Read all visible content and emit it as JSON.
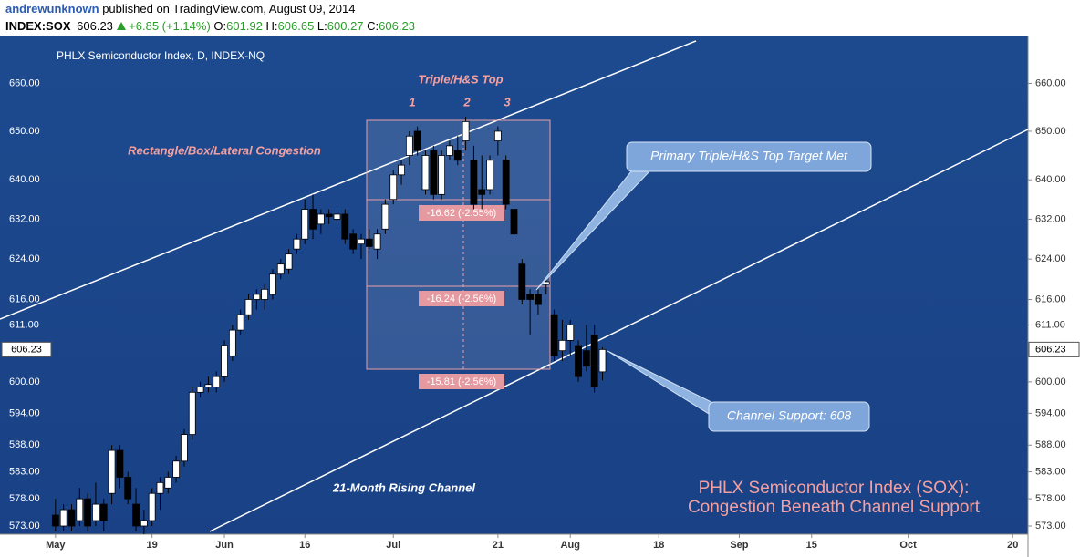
{
  "header": {
    "user": "andrewunknown",
    "published": "published on TradingView.com, August 09, 2014",
    "symbol": "INDEX:SOX",
    "change": "+6.85 (+1.14%)",
    "o_label": "O:",
    "h_label": "H:",
    "l_label": "L:",
    "c_label": "C:"
  },
  "chart_data": {
    "type": "candlestick",
    "title": "PHLX Semiconductor Index, D, INDEX-NQ",
    "log_scale": true,
    "ylim": [
      571.5,
      669
    ],
    "xlim": [
      -6.9,
      120.9
    ],
    "yticks": [
      {
        "value": 573,
        "label": "573.00"
      },
      {
        "value": 578,
        "label": "578.00"
      },
      {
        "value": 583,
        "label": "583.00"
      },
      {
        "value": 588,
        "label": "588.00"
      },
      {
        "value": 594,
        "label": "594.00"
      },
      {
        "value": 600,
        "label": "600.00"
      },
      {
        "value": 611,
        "label": "611.00"
      },
      {
        "value": 616,
        "label": "616.00"
      },
      {
        "value": 624,
        "label": "624.00"
      },
      {
        "value": 632,
        "label": "632.00"
      },
      {
        "value": 640,
        "label": "640.00"
      },
      {
        "value": 650,
        "label": "650.00"
      },
      {
        "value": 660,
        "label": "660.00"
      }
    ],
    "xticks": [
      {
        "value": 0,
        "label": "May"
      },
      {
        "value": 12,
        "label": "19"
      },
      {
        "value": 21,
        "label": "Jun"
      },
      {
        "value": 31,
        "label": "16"
      },
      {
        "value": 42,
        "label": "Jul"
      },
      {
        "value": 55,
        "label": "21"
      },
      {
        "value": 64,
        "label": "Aug"
      },
      {
        "value": 75,
        "label": "18"
      },
      {
        "value": 85,
        "label": "Sep"
      },
      {
        "value": 94,
        "label": "15"
      },
      {
        "value": 106,
        "label": "Oct"
      },
      {
        "value": 119,
        "label": "20"
      }
    ],
    "up_color": "#ffffff",
    "down_color": "#000000",
    "open": [
      575,
      573,
      576,
      574,
      578,
      574,
      577,
      579,
      587,
      582,
      577,
      573,
      574,
      579,
      580,
      582,
      585,
      590,
      598,
      599,
      599,
      601,
      605,
      610,
      613,
      616,
      616,
      617,
      621,
      622,
      626,
      628,
      634,
      631,
      633,
      632,
      633,
      629,
      627,
      628,
      626,
      630,
      636,
      641,
      645,
      650,
      638,
      646,
      637,
      645,
      646,
      648,
      644,
      638,
      638,
      648,
      644,
      634,
      623,
      617,
      617,
      619,
      613,
      606,
      608,
      607,
      606,
      609,
      601.92
    ],
    "high": [
      578,
      577,
      577,
      580,
      579,
      581,
      578,
      588,
      588,
      583,
      580,
      576,
      580,
      582,
      583,
      586,
      591,
      599,
      600,
      601,
      602,
      608,
      611,
      614,
      617,
      618,
      619,
      622,
      624,
      626,
      629,
      636,
      637,
      634,
      634,
      634,
      634,
      630,
      629,
      630,
      630,
      636,
      642,
      644,
      650,
      651,
      646,
      647,
      646,
      648,
      649,
      653,
      647,
      645,
      645,
      651,
      645,
      635,
      624,
      618,
      618,
      620,
      614,
      612,
      612,
      608,
      611,
      611,
      606.65
    ],
    "low": [
      572,
      572,
      572,
      573,
      572,
      573,
      572,
      577,
      580,
      577,
      572,
      571.5,
      573,
      576,
      579,
      581,
      584,
      589,
      597,
      598,
      598,
      600,
      604,
      609,
      612,
      614,
      614,
      616,
      620,
      621,
      625,
      627,
      628,
      629,
      631,
      630,
      627,
      625,
      624,
      626,
      624,
      629,
      635,
      639,
      643,
      645,
      637,
      636,
      636,
      644,
      643,
      646,
      634,
      634,
      637,
      645,
      634,
      628,
      615,
      609,
      613,
      617,
      604,
      604,
      605,
      600,
      602,
      598,
      600.27
    ],
    "close": [
      573,
      576,
      573,
      578,
      573,
      577,
      574,
      587,
      582,
      578,
      573,
      574,
      579,
      581,
      582,
      585,
      590,
      598,
      599,
      599.5,
      601,
      607,
      610,
      613,
      616,
      617,
      618,
      621,
      623,
      625,
      628,
      634,
      630,
      633,
      632.5,
      633,
      628,
      626,
      628,
      626.5,
      629,
      635,
      641,
      643,
      649,
      646,
      645,
      637,
      645,
      647,
      644,
      652,
      635,
      637,
      644,
      650,
      635,
      629,
      616,
      616,
      615,
      619.5,
      605,
      608,
      611,
      601,
      603,
      599,
      606.23
    ],
    "channel_label": "21-Month Rising Channel",
    "annotations": {
      "pattern": "Triple/H&S Top",
      "peak1": "1",
      "peak2": "2",
      "peak3": "3",
      "congestion": "Rectangle/Box/Lateral Congestion",
      "measure1": "-16.62 (-2.55%)",
      "measure2": "-16.24 (-2.56%)",
      "measure3": "-15.81 (-2.56%)",
      "callout_target": "Primary Triple/H&S Top Target Met",
      "callout_support": "Channel Support: 608",
      "headline1": "PHLX Semiconductor Index (SOX):",
      "headline2": "Congestion Beneath Channel Support"
    }
  }
}
